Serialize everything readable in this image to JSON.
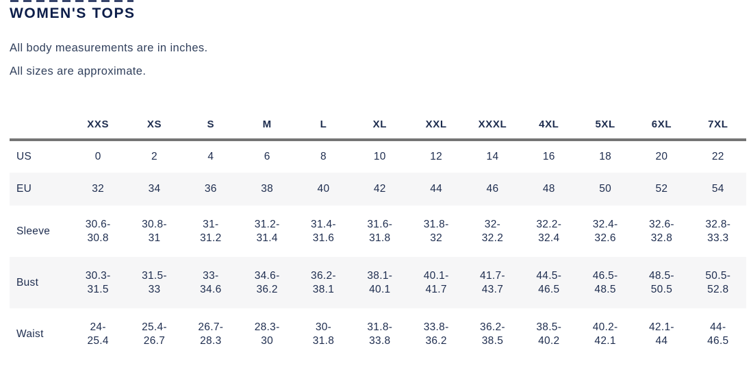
{
  "page": {
    "title": "WOMEN'S TOPS",
    "note_measurements": "All body measurements are in inches.",
    "note_sizes": "All sizes are approximate."
  },
  "size_table": {
    "columns": [
      "XXS",
      "XS",
      "S",
      "M",
      "L",
      "XL",
      "XXL",
      "XXXL",
      "4XL",
      "5XL",
      "6XL",
      "7XL"
    ],
    "rows": [
      {
        "label": "US",
        "two_line": false,
        "striped": false,
        "values": [
          "0",
          "2",
          "4",
          "6",
          "8",
          "10",
          "12",
          "14",
          "16",
          "18",
          "20",
          "22"
        ]
      },
      {
        "label": "EU",
        "two_line": false,
        "striped": true,
        "values": [
          "32",
          "34",
          "36",
          "38",
          "40",
          "42",
          "44",
          "46",
          "48",
          "50",
          "52",
          "54"
        ]
      },
      {
        "label": "Sleeve",
        "two_line": true,
        "striped": false,
        "values": [
          "30.6-30.8",
          "30.8-31",
          "31-31.2",
          "31.2-31.4",
          "31.4-31.6",
          "31.6-31.8",
          "31.8-32",
          "32-32.2",
          "32.2-32.4",
          "32.4-32.6",
          "32.6-32.8",
          "32.8-33.3"
        ]
      },
      {
        "label": "Bust",
        "two_line": true,
        "striped": true,
        "values": [
          "30.3-31.5",
          "31.5-33",
          "33-34.6",
          "34.6-36.2",
          "36.2-38.1",
          "38.1-40.1",
          "40.1-41.7",
          "41.7-43.7",
          "44.5-46.5",
          "46.5-48.5",
          "48.5-50.5",
          "50.5-52.8"
        ]
      },
      {
        "label": "Waist",
        "two_line": true,
        "striped": false,
        "values": [
          "24-25.4",
          "25.4-26.7",
          "26.7-28.3",
          "28.3-30",
          "30-31.8",
          "31.8-33.8",
          "33.8-36.2",
          "36.2-38.5",
          "38.5-40.2",
          "40.2-42.1",
          "42.1-44",
          "44-46.5"
        ]
      }
    ]
  },
  "colors": {
    "title": "#0c1d49",
    "note_text": "#31405c",
    "table_text": "#1d2c4e",
    "divider": "#757575",
    "stripe_background": "#f6f6f7"
  }
}
